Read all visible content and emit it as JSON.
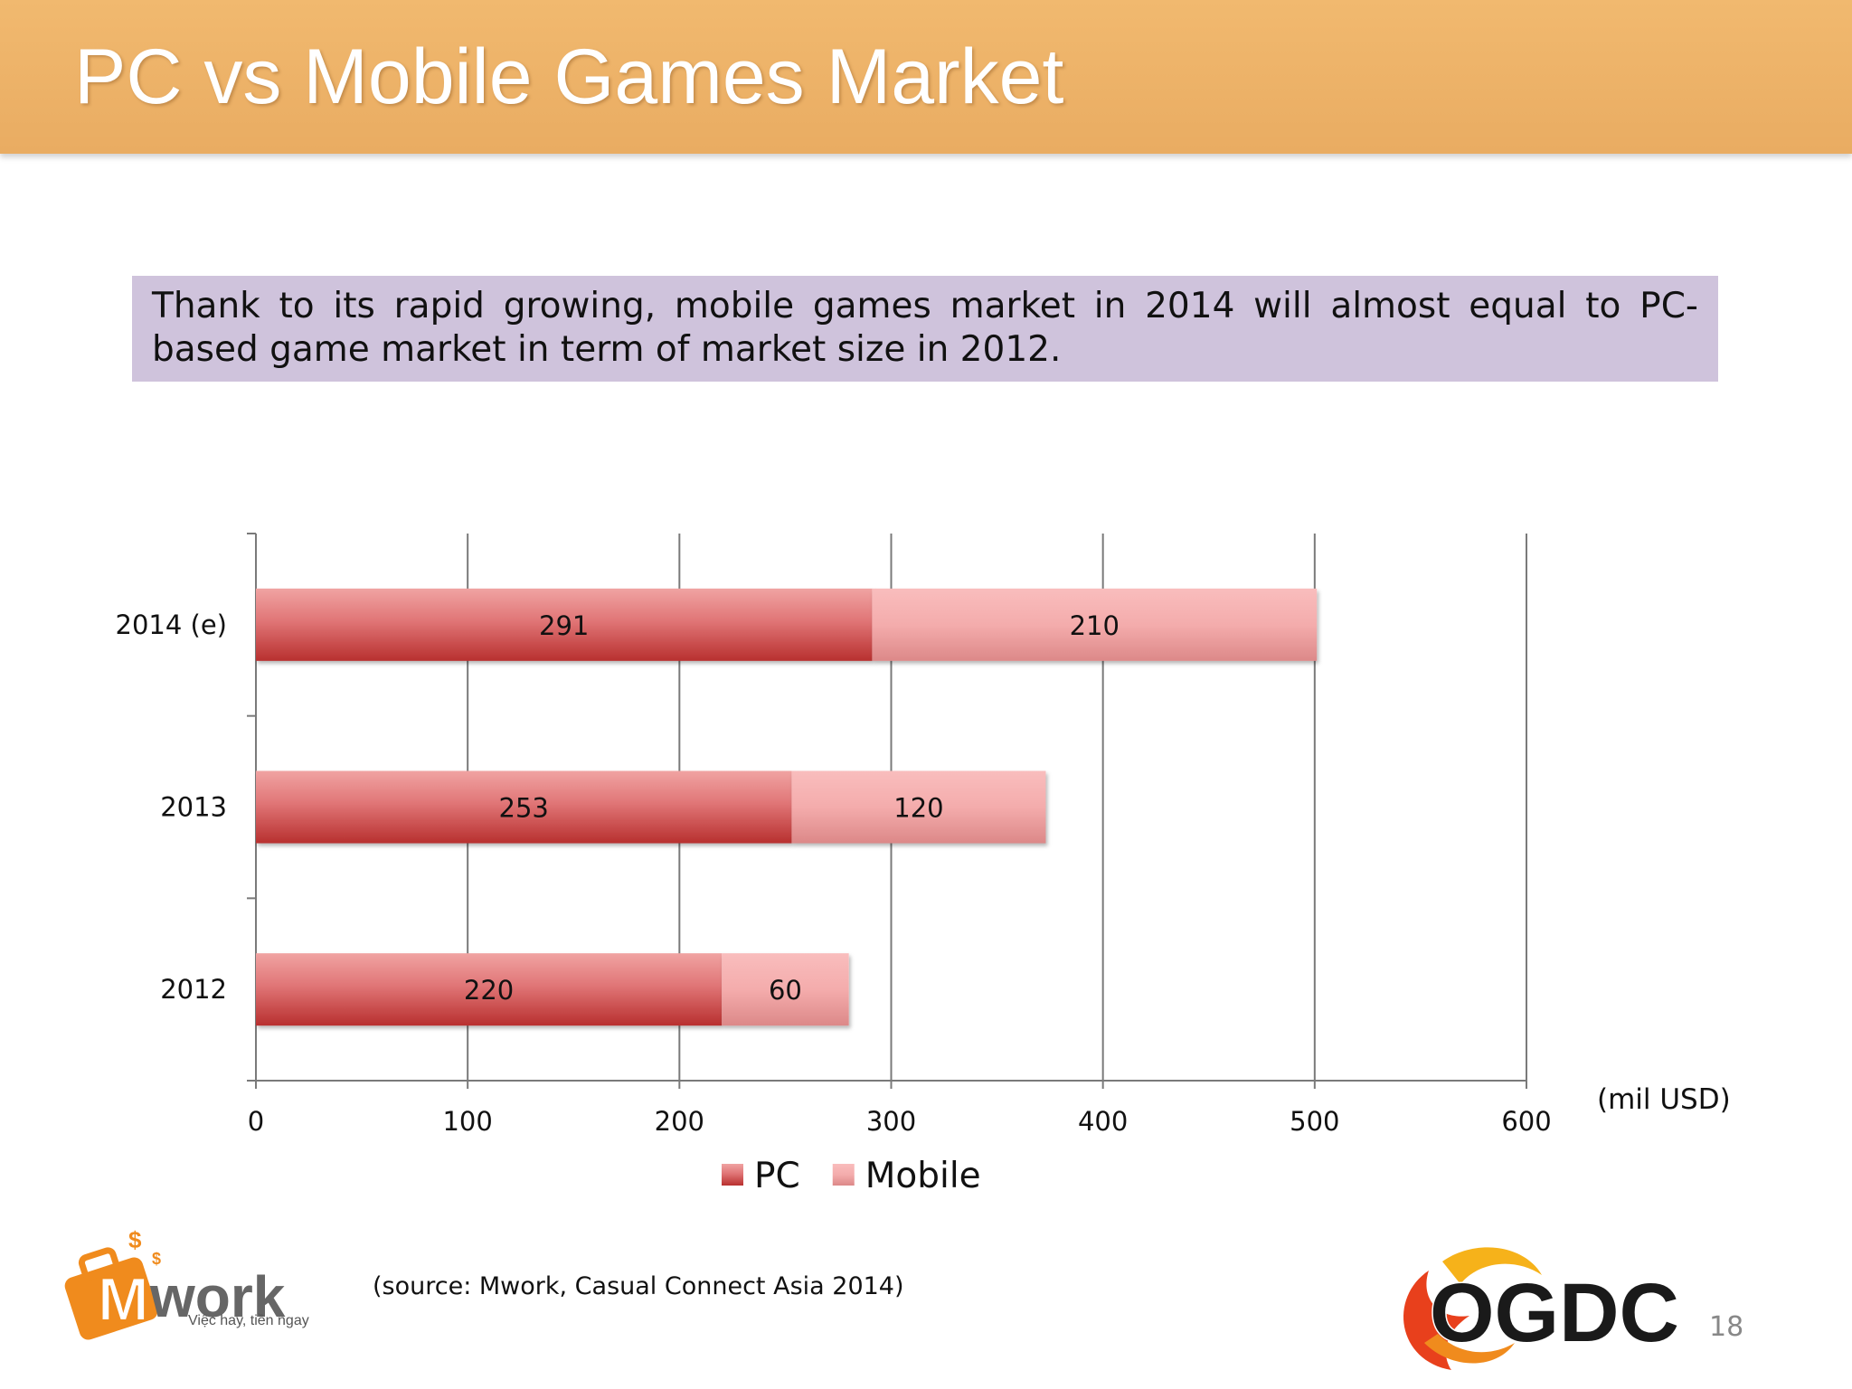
{
  "slide": {
    "title": "PC vs Mobile Games Market",
    "callout": "Thank to its rapid growing, mobile games market in 2014 will almost equal to PC-based game market in term of market size in 2012.",
    "unit_label": "(mil USD)",
    "source": "(source: Mwork, Casual Connect Asia 2014)",
    "page_number": "18"
  },
  "logos": {
    "mwork": {
      "text": "Mwork",
      "tagline": "Việc hay, tiền ngay",
      "icon": "briefcase-dollar-icon"
    },
    "ogdc": {
      "text": "OGDC",
      "icon": "flame-swirl-icon"
    }
  },
  "colors": {
    "title_bar": "#e9ac62",
    "callout_bg": "#cfc3dc",
    "pc": "#c8383b",
    "mobile": "#f0a7a7"
  },
  "chart_data": {
    "type": "bar",
    "orientation": "horizontal",
    "stacked": true,
    "categories": [
      "2014 (e)",
      "2013",
      "2012"
    ],
    "series": [
      {
        "name": "PC",
        "values": [
          291,
          253,
          220
        ]
      },
      {
        "name": "Mobile",
        "values": [
          210,
          120,
          60
        ]
      }
    ],
    "xlim": [
      0,
      600
    ],
    "xticks": [
      0,
      100,
      200,
      300,
      400,
      500,
      600
    ],
    "grid": "vertical",
    "legend": "bottom",
    "data_labels": true
  }
}
